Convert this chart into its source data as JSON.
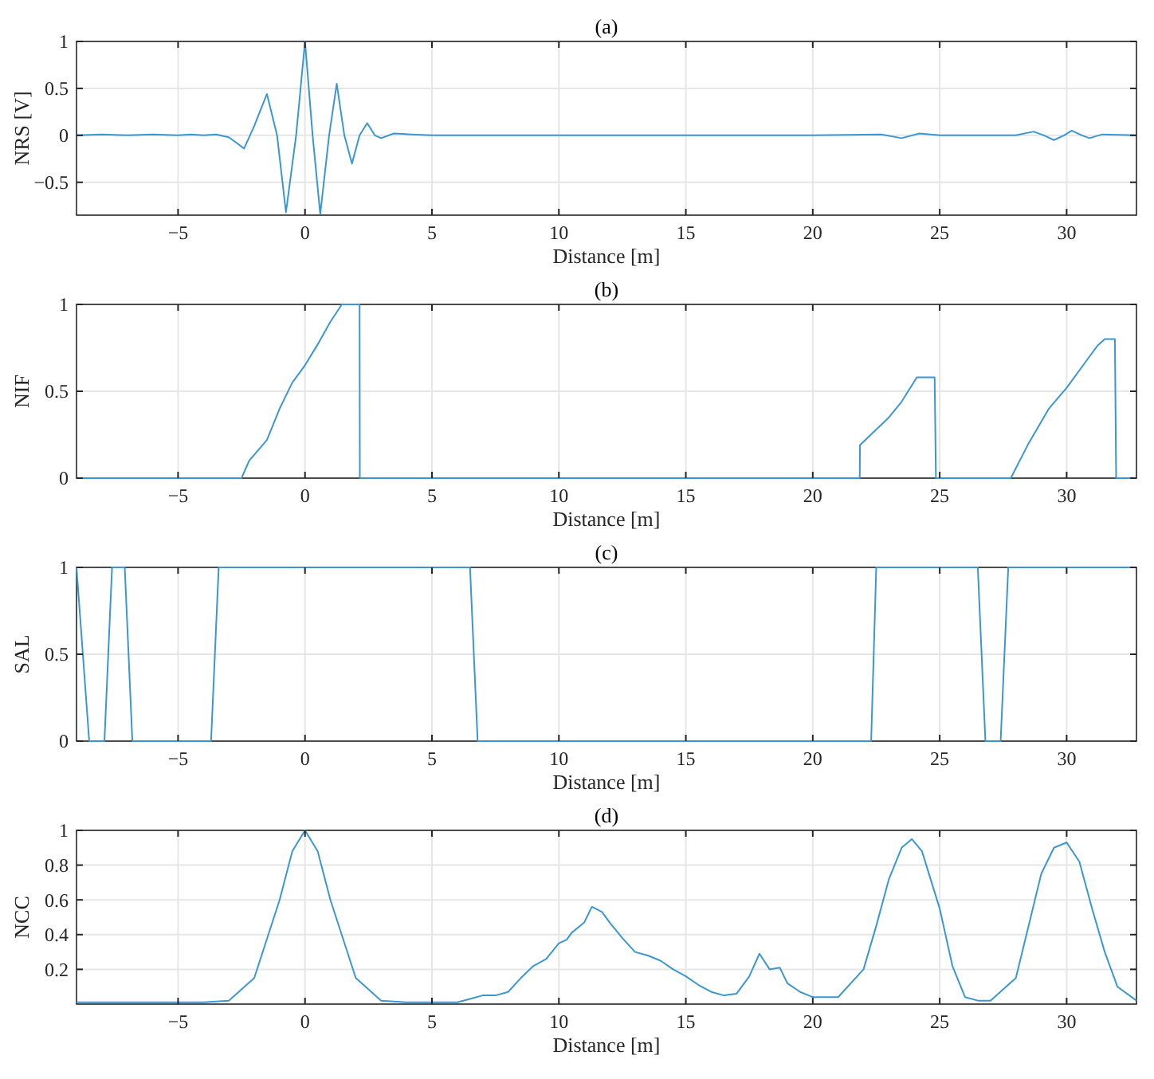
{
  "chart_data": [
    {
      "type": "line",
      "title": "(a)",
      "xlabel": "Distance [m]",
      "ylabel": "NRS [V]",
      "color": "#3b97d3",
      "grid": true,
      "xlim": [
        -9,
        32.75
      ],
      "xticks": [
        -5,
        0,
        5,
        10,
        15,
        20,
        25,
        30
      ],
      "ylim": [
        -0.85,
        1
      ],
      "yticks": [
        -0.5,
        0,
        0.5,
        1
      ],
      "x": [
        -9,
        -8,
        -7,
        -6,
        -5,
        -4.5,
        -4,
        -3.5,
        -3,
        -2.7,
        -2.4,
        -2.0,
        -1.5,
        -1.1,
        -0.75,
        -0.35,
        0,
        0.3,
        0.6,
        0.95,
        1.25,
        1.55,
        1.85,
        2.15,
        2.45,
        2.75,
        3.0,
        3.5,
        4.2,
        5,
        10,
        15,
        20,
        22.7,
        23.5,
        24.2,
        25,
        28,
        28.7,
        29.1,
        29.5,
        29.9,
        30.2,
        30.6,
        30.9,
        31.4,
        32.75
      ],
      "values": [
        0,
        0.01,
        0,
        0.01,
        0,
        0.01,
        0,
        0.01,
        -0.02,
        -0.08,
        -0.14,
        0.1,
        0.44,
        0,
        -0.82,
        0,
        1,
        0,
        -0.84,
        0,
        0.55,
        0,
        -0.3,
        0,
        0.13,
        0,
        -0.03,
        0.02,
        0.01,
        0,
        0,
        0,
        0,
        0.01,
        -0.03,
        0.02,
        0,
        0,
        0.04,
        0,
        -0.05,
        0,
        0.05,
        0,
        -0.03,
        0.01,
        0
      ]
    },
    {
      "type": "line",
      "title": "(b)",
      "xlabel": "Distance [m]",
      "ylabel": "NIF",
      "color": "#3b97d3",
      "grid": true,
      "xlim": [
        -9,
        32.75
      ],
      "xticks": [
        -5,
        0,
        5,
        10,
        15,
        20,
        25,
        30
      ],
      "ylim": [
        0,
        1
      ],
      "yticks": [
        0,
        0.5,
        1
      ],
      "x": [
        -9,
        -2.5,
        -2.2,
        -1.5,
        -1,
        -0.5,
        0,
        0.5,
        1,
        1.45,
        2.15,
        2.16,
        21.85,
        21.86,
        23,
        23.5,
        24.1,
        24.8,
        24.85,
        27.8,
        28.5,
        29.3,
        30,
        30.8,
        31.2,
        31.5,
        31.9,
        31.95,
        32.75
      ],
      "values": [
        0,
        0,
        0.1,
        0.22,
        0.4,
        0.55,
        0.65,
        0.77,
        0.9,
        1,
        1,
        0,
        0,
        0.19,
        0.35,
        0.44,
        0.58,
        0.58,
        0,
        0,
        0.2,
        0.4,
        0.52,
        0.68,
        0.76,
        0.8,
        0.8,
        0,
        0
      ]
    },
    {
      "type": "line",
      "title": "(c)",
      "xlabel": "Distance [m]",
      "ylabel": "SAL",
      "color": "#3b97d3",
      "grid": true,
      "xlim": [
        -9,
        32.75
      ],
      "xticks": [
        -5,
        0,
        5,
        10,
        15,
        20,
        25,
        30
      ],
      "ylim": [
        0,
        1
      ],
      "yticks": [
        0,
        0.5,
        1
      ],
      "x": [
        -9,
        -8.5,
        -7.9,
        -7.6,
        -7.1,
        -6.8,
        -3.7,
        -3.4,
        6.5,
        6.8,
        22.3,
        22.5,
        26.5,
        26.8,
        27.4,
        27.7,
        32.75
      ],
      "values": [
        1,
        0,
        0,
        1,
        1,
        0,
        0,
        1,
        1,
        0,
        0,
        1,
        1,
        0,
        0,
        1,
        1
      ]
    },
    {
      "type": "line",
      "title": "(d)",
      "xlabel": "Distance [m]",
      "ylabel": "NCC",
      "color": "#3b97d3",
      "grid": true,
      "xlim": [
        -9,
        32.75
      ],
      "xticks": [
        -5,
        0,
        5,
        10,
        15,
        20,
        25,
        30
      ],
      "ylim": [
        0,
        1
      ],
      "yticks": [
        0.2,
        0.4,
        0.6,
        0.8,
        1
      ],
      "x": [
        -9,
        -4,
        -3,
        -2,
        -1,
        -0.5,
        0,
        0.5,
        1,
        2,
        3,
        4,
        6,
        6.5,
        7,
        7.5,
        8,
        8.5,
        9,
        9.5,
        10,
        10.3,
        10.5,
        11,
        11.3,
        11.7,
        12,
        12.5,
        13,
        13.5,
        14,
        14.5,
        15,
        15.5,
        16,
        16.5,
        17,
        17.5,
        17.9,
        18.3,
        18.7,
        19,
        19.5,
        20,
        21,
        22,
        22.5,
        23,
        23.5,
        23.9,
        24.3,
        25,
        25.5,
        26,
        26.5,
        27,
        28,
        28.5,
        29,
        29.5,
        30,
        30.5,
        31,
        31.5,
        32,
        32.75
      ],
      "values": [
        0.01,
        0.01,
        0.02,
        0.15,
        0.6,
        0.88,
        1,
        0.88,
        0.6,
        0.15,
        0.02,
        0.01,
        0.01,
        0.03,
        0.05,
        0.05,
        0.07,
        0.15,
        0.22,
        0.26,
        0.35,
        0.37,
        0.41,
        0.47,
        0.56,
        0.53,
        0.47,
        0.38,
        0.3,
        0.28,
        0.25,
        0.2,
        0.16,
        0.11,
        0.07,
        0.05,
        0.06,
        0.16,
        0.29,
        0.2,
        0.21,
        0.12,
        0.07,
        0.04,
        0.04,
        0.2,
        0.45,
        0.72,
        0.9,
        0.95,
        0.88,
        0.55,
        0.22,
        0.04,
        0.02,
        0.02,
        0.15,
        0.45,
        0.75,
        0.9,
        0.93,
        0.82,
        0.55,
        0.3,
        0.1,
        0.02
      ]
    }
  ]
}
